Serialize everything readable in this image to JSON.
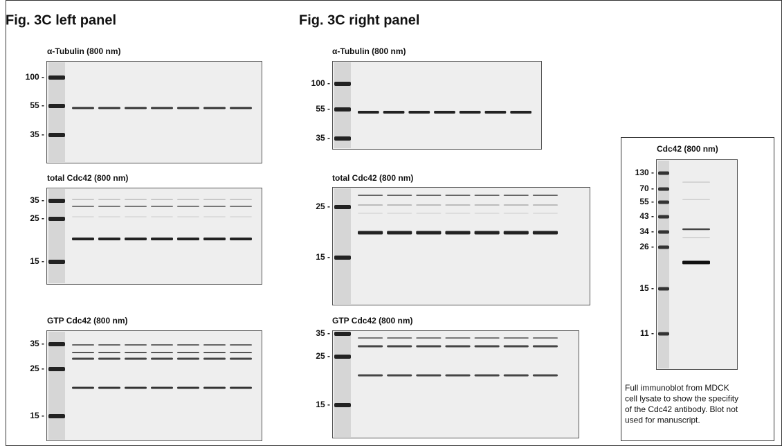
{
  "panels": [
    {
      "title": "Fig. 3C left panel",
      "blots": [
        {
          "label": "α-Tubulin (800 nm)",
          "markers": [
            "100 -",
            "55 -",
            "35 -"
          ]
        },
        {
          "label": "total Cdc42 (800 nm)",
          "markers": [
            "35 -",
            "25 -",
            "15 -"
          ]
        },
        {
          "label": "GTP Cdc42 (800 nm)",
          "markers": [
            "35 -",
            "25 -",
            "15 -"
          ]
        }
      ]
    },
    {
      "title": "Fig. 3C right panel",
      "blots": [
        {
          "label": "α-Tubulin (800 nm)",
          "markers": [
            "100 -",
            "55 -",
            "35 -"
          ]
        },
        {
          "label": "total Cdc42 (800 nm)",
          "markers": [
            "25 -",
            "15 -"
          ]
        },
        {
          "label": "GTP Cdc42 (800 nm)",
          "markers": [
            "35 -",
            "25 -",
            "15 -"
          ]
        }
      ]
    }
  ],
  "inset": {
    "label": "Cdc42 (800 nm)",
    "markers": [
      "130 -",
      "70 -",
      "55 -",
      "43 -",
      "34 -",
      "26 -",
      "15 -",
      "11 -"
    ],
    "caption": [
      "Full immunoblot from MDCK",
      "cell lysate to show the specifity",
      "of the Cdc42 antibody. Blot not",
      "used for manuscript."
    ]
  }
}
